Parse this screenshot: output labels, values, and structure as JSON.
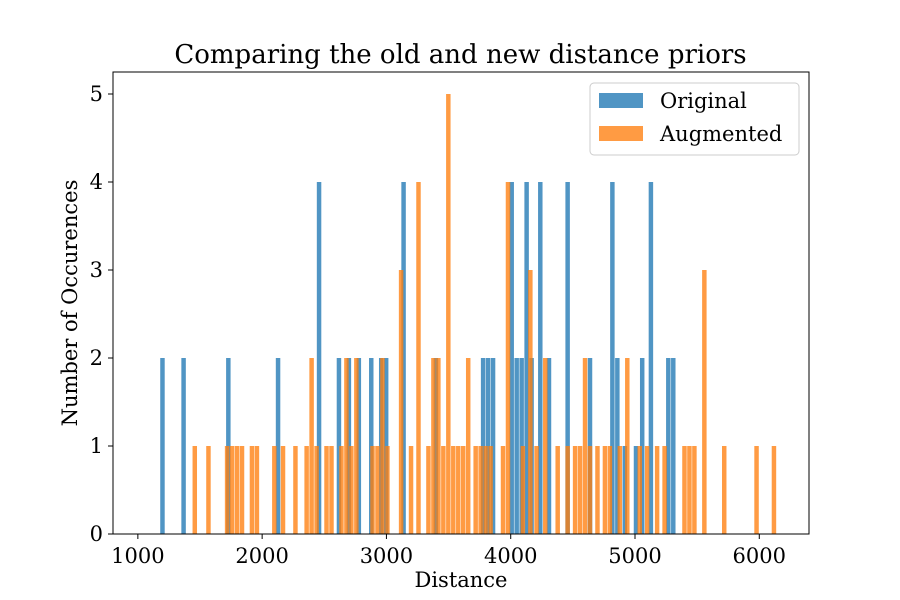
{
  "chart_data": {
    "type": "bar",
    "title": "Comparing the old and new distance priors",
    "xlabel": "Distance",
    "ylabel": "Number of Occurences",
    "xlim": [
      800,
      6400
    ],
    "ylim": [
      0,
      5.25
    ],
    "xticks": [
      1000,
      2000,
      3000,
      4000,
      5000,
      6000
    ],
    "yticks": [
      0,
      1,
      2,
      3,
      4,
      5
    ],
    "bin_width": 40,
    "grid": false,
    "legend_position": "top-right",
    "series": [
      {
        "name": "Original",
        "color": "#1f77b4",
        "opacity": 0.78,
        "bins": [
          {
            "x": 1180,
            "y": 2
          },
          {
            "x": 1350,
            "y": 2
          },
          {
            "x": 1710,
            "y": 2
          },
          {
            "x": 2110,
            "y": 2
          },
          {
            "x": 2440,
            "y": 4
          },
          {
            "x": 2600,
            "y": 2
          },
          {
            "x": 2680,
            "y": 2
          },
          {
            "x": 2760,
            "y": 2
          },
          {
            "x": 2860,
            "y": 2
          },
          {
            "x": 2940,
            "y": 2
          },
          {
            "x": 2980,
            "y": 2
          },
          {
            "x": 3120,
            "y": 4
          },
          {
            "x": 3380,
            "y": 2
          },
          {
            "x": 3760,
            "y": 2
          },
          {
            "x": 3800,
            "y": 2
          },
          {
            "x": 3840,
            "y": 2
          },
          {
            "x": 3990,
            "y": 4
          },
          {
            "x": 4030,
            "y": 2
          },
          {
            "x": 4070,
            "y": 2
          },
          {
            "x": 4110,
            "y": 4
          },
          {
            "x": 4150,
            "y": 2
          },
          {
            "x": 4220,
            "y": 4
          },
          {
            "x": 4290,
            "y": 2
          },
          {
            "x": 4440,
            "y": 4
          },
          {
            "x": 4620,
            "y": 2
          },
          {
            "x": 4800,
            "y": 4
          },
          {
            "x": 4840,
            "y": 2
          },
          {
            "x": 4900,
            "y": 1
          },
          {
            "x": 4990,
            "y": 1
          },
          {
            "x": 5040,
            "y": 2
          },
          {
            "x": 5110,
            "y": 4
          },
          {
            "x": 5250,
            "y": 2
          },
          {
            "x": 5290,
            "y": 2
          }
        ]
      },
      {
        "name": "Augmented",
        "color": "#ff7f0e",
        "opacity": 0.78,
        "bins": [
          {
            "x": 1440,
            "y": 1
          },
          {
            "x": 1550,
            "y": 1
          },
          {
            "x": 1700,
            "y": 1
          },
          {
            "x": 1740,
            "y": 1
          },
          {
            "x": 1780,
            "y": 1
          },
          {
            "x": 1820,
            "y": 1
          },
          {
            "x": 1900,
            "y": 1
          },
          {
            "x": 1940,
            "y": 1
          },
          {
            "x": 2080,
            "y": 1
          },
          {
            "x": 2150,
            "y": 1
          },
          {
            "x": 2250,
            "y": 1
          },
          {
            "x": 2340,
            "y": 1
          },
          {
            "x": 2380,
            "y": 2
          },
          {
            "x": 2420,
            "y": 1
          },
          {
            "x": 2500,
            "y": 1
          },
          {
            "x": 2540,
            "y": 1
          },
          {
            "x": 2620,
            "y": 1
          },
          {
            "x": 2660,
            "y": 2
          },
          {
            "x": 2700,
            "y": 1
          },
          {
            "x": 2740,
            "y": 2
          },
          {
            "x": 2870,
            "y": 1
          },
          {
            "x": 2910,
            "y": 1
          },
          {
            "x": 2950,
            "y": 2
          },
          {
            "x": 2990,
            "y": 1
          },
          {
            "x": 3100,
            "y": 3
          },
          {
            "x": 3180,
            "y": 1
          },
          {
            "x": 3240,
            "y": 4
          },
          {
            "x": 3320,
            "y": 1
          },
          {
            "x": 3360,
            "y": 2
          },
          {
            "x": 3400,
            "y": 2
          },
          {
            "x": 3440,
            "y": 1
          },
          {
            "x": 3480,
            "y": 5
          },
          {
            "x": 3520,
            "y": 1
          },
          {
            "x": 3560,
            "y": 1
          },
          {
            "x": 3600,
            "y": 1
          },
          {
            "x": 3640,
            "y": 2
          },
          {
            "x": 3700,
            "y": 1
          },
          {
            "x": 3740,
            "y": 1
          },
          {
            "x": 3780,
            "y": 1
          },
          {
            "x": 3820,
            "y": 1
          },
          {
            "x": 3920,
            "y": 1
          },
          {
            "x": 3960,
            "y": 4
          },
          {
            "x": 4080,
            "y": 1
          },
          {
            "x": 4140,
            "y": 3
          },
          {
            "x": 4190,
            "y": 1
          },
          {
            "x": 4260,
            "y": 2
          },
          {
            "x": 4360,
            "y": 1
          },
          {
            "x": 4440,
            "y": 1
          },
          {
            "x": 4500,
            "y": 1
          },
          {
            "x": 4540,
            "y": 1
          },
          {
            "x": 4580,
            "y": 2
          },
          {
            "x": 4620,
            "y": 1
          },
          {
            "x": 4680,
            "y": 1
          },
          {
            "x": 4740,
            "y": 1
          },
          {
            "x": 4780,
            "y": 1
          },
          {
            "x": 4860,
            "y": 1
          },
          {
            "x": 4920,
            "y": 2
          },
          {
            "x": 5020,
            "y": 1
          },
          {
            "x": 5080,
            "y": 1
          },
          {
            "x": 5160,
            "y": 1
          },
          {
            "x": 5220,
            "y": 1
          },
          {
            "x": 5380,
            "y": 1
          },
          {
            "x": 5420,
            "y": 1
          },
          {
            "x": 5460,
            "y": 1
          },
          {
            "x": 5540,
            "y": 3
          },
          {
            "x": 5700,
            "y": 1
          },
          {
            "x": 5960,
            "y": 1
          },
          {
            "x": 6100,
            "y": 1
          }
        ]
      }
    ]
  }
}
